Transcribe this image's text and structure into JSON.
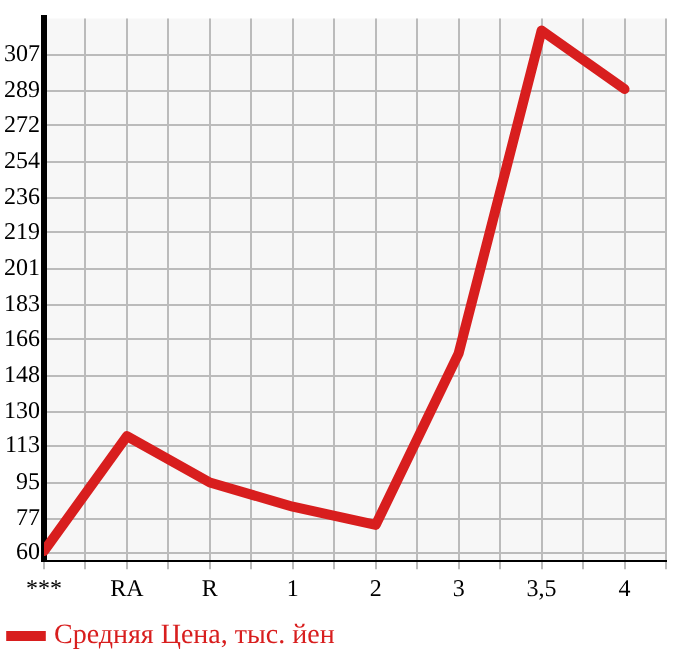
{
  "chart_data": {
    "type": "line",
    "categories": [
      "***",
      "RA",
      "R",
      "1",
      "2",
      "3",
      "3,5",
      "4"
    ],
    "series": [
      {
        "name": "Средняя Цена, тыс. йен",
        "color": "#d81e1e",
        "values": [
          61,
          118,
          95,
          83,
          74,
          159,
          319,
          290
        ]
      }
    ],
    "ylim": [
      56,
      325
    ],
    "yticks": [
      60,
      77,
      95,
      113,
      130,
      148,
      166,
      183,
      201,
      219,
      236,
      254,
      272,
      289,
      307
    ],
    "grid": true,
    "legend": "bottom left",
    "marker": "none",
    "line_style": "solid"
  }
}
